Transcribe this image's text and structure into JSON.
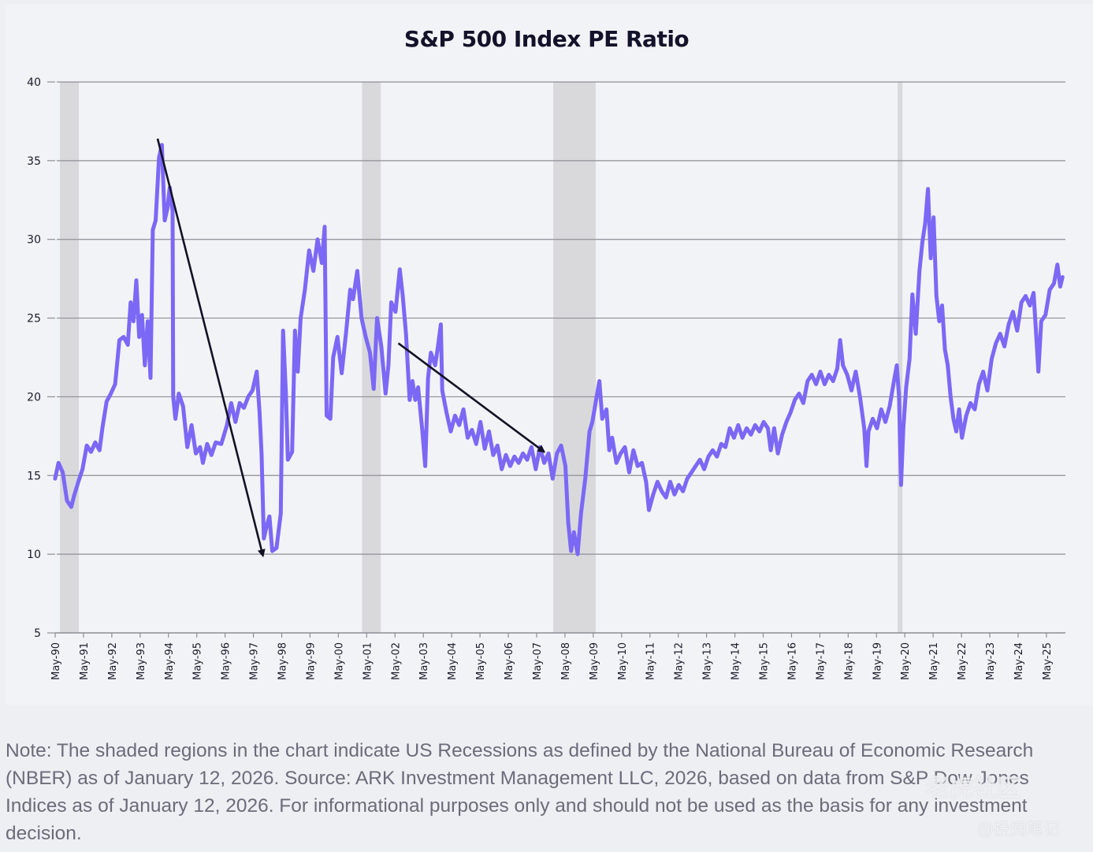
{
  "chart_data": {
    "type": "line",
    "title": "S&P 500 Index PE Ratio",
    "xlabel": "",
    "ylabel": "",
    "ylim": [
      5,
      40
    ],
    "yticks": [
      5,
      10,
      15,
      20,
      25,
      30,
      35,
      40
    ],
    "grid": "horizontal",
    "x_start": "May-90",
    "x_end": "Dec-25",
    "xtick_labels": [
      "May-90",
      "May-91",
      "May-92",
      "May-93",
      "May-94",
      "May-95",
      "May-96",
      "May-97",
      "May-98",
      "May-99",
      "May-00",
      "May-01",
      "May-02",
      "May-03",
      "May-04",
      "May-05",
      "May-06",
      "May-07",
      "May-08",
      "May-09",
      "May-10",
      "May-11",
      "May-12",
      "May-13",
      "May-14",
      "May-15",
      "May-16",
      "May-17",
      "May-18",
      "May-19",
      "May-20",
      "May-21",
      "May-22",
      "May-23",
      "May-24",
      "May-25"
    ],
    "series_color": "#7b68f5",
    "recession_color": "#d9d9dc",
    "recessions": [
      {
        "start": 1990.5,
        "end": 1991.17
      },
      {
        "start": 2001.17,
        "end": 2001.83
      },
      {
        "start": 2007.92,
        "end": 2009.42
      },
      {
        "start": 2020.08,
        "end": 2020.25
      }
    ],
    "series": [
      {
        "name": "S&P 500 PE Ratio",
        "points": [
          [
            1990.33,
            14.8
          ],
          [
            1990.45,
            15.8
          ],
          [
            1990.6,
            15.2
          ],
          [
            1990.75,
            13.4
          ],
          [
            1990.9,
            13.0
          ],
          [
            1991.0,
            13.7
          ],
          [
            1991.15,
            14.6
          ],
          [
            1991.3,
            15.4
          ],
          [
            1991.45,
            16.9
          ],
          [
            1991.6,
            16.5
          ],
          [
            1991.75,
            17.1
          ],
          [
            1991.9,
            16.6
          ],
          [
            1992.0,
            18.0
          ],
          [
            1992.15,
            19.7
          ],
          [
            1992.3,
            20.2
          ],
          [
            1992.45,
            20.8
          ],
          [
            1992.6,
            23.6
          ],
          [
            1992.75,
            23.8
          ],
          [
            1992.9,
            23.3
          ],
          [
            1993.0,
            26.0
          ],
          [
            1993.1,
            24.8
          ],
          [
            1993.2,
            27.4
          ],
          [
            1993.3,
            23.8
          ],
          [
            1993.4,
            25.2
          ],
          [
            1993.5,
            22.0
          ],
          [
            1993.6,
            24.8
          ],
          [
            1993.7,
            21.2
          ],
          [
            1993.78,
            30.6
          ],
          [
            1993.88,
            31.2
          ],
          [
            1994.0,
            35.2
          ],
          [
            1994.1,
            36.0
          ],
          [
            1994.2,
            31.2
          ],
          [
            1994.3,
            32.0
          ],
          [
            1994.38,
            33.3
          ],
          [
            1994.48,
            31.8
          ],
          [
            1994.5,
            20.0
          ],
          [
            1994.58,
            18.6
          ],
          [
            1994.7,
            20.2
          ],
          [
            1994.85,
            19.4
          ],
          [
            1995.0,
            16.8
          ],
          [
            1995.15,
            18.2
          ],
          [
            1995.3,
            16.4
          ],
          [
            1995.45,
            16.8
          ],
          [
            1995.55,
            15.8
          ],
          [
            1995.7,
            17.0
          ],
          [
            1995.85,
            16.3
          ],
          [
            1996.0,
            17.1
          ],
          [
            1996.2,
            17.0
          ],
          [
            1996.4,
            18.2
          ],
          [
            1996.55,
            19.6
          ],
          [
            1996.7,
            18.4
          ],
          [
            1996.85,
            19.6
          ],
          [
            1997.0,
            19.3
          ],
          [
            1997.15,
            20.0
          ],
          [
            1997.3,
            20.4
          ],
          [
            1997.45,
            21.6
          ],
          [
            1997.55,
            19.0
          ],
          [
            1997.62,
            16.4
          ],
          [
            1997.7,
            11.0
          ],
          [
            1997.8,
            11.8
          ],
          [
            1997.9,
            12.4
          ],
          [
            1998.0,
            10.2
          ],
          [
            1998.15,
            10.4
          ],
          [
            1998.3,
            12.6
          ],
          [
            1998.38,
            24.2
          ],
          [
            1998.48,
            20.2
          ],
          [
            1998.55,
            16.0
          ],
          [
            1998.7,
            16.5
          ],
          [
            1998.8,
            24.2
          ],
          [
            1998.9,
            21.6
          ],
          [
            1999.0,
            25.0
          ],
          [
            1999.15,
            26.8
          ],
          [
            1999.3,
            29.3
          ],
          [
            1999.45,
            28.0
          ],
          [
            1999.6,
            30.0
          ],
          [
            1999.75,
            28.5
          ],
          [
            1999.85,
            30.8
          ],
          [
            1999.92,
            18.8
          ],
          [
            2000.05,
            18.6
          ],
          [
            2000.15,
            22.5
          ],
          [
            2000.3,
            23.8
          ],
          [
            2000.45,
            21.5
          ],
          [
            2000.6,
            24.0
          ],
          [
            2000.75,
            26.8
          ],
          [
            2000.85,
            26.2
          ],
          [
            2001.0,
            28.0
          ],
          [
            2001.15,
            25.0
          ],
          [
            2001.3,
            23.8
          ],
          [
            2001.45,
            22.8
          ],
          [
            2001.58,
            20.5
          ],
          [
            2001.7,
            25.0
          ],
          [
            2001.85,
            23.2
          ],
          [
            2002.0,
            20.2
          ],
          [
            2002.1,
            22.0
          ],
          [
            2002.2,
            26.0
          ],
          [
            2002.35,
            25.4
          ],
          [
            2002.5,
            28.1
          ],
          [
            2002.6,
            26.5
          ],
          [
            2002.72,
            24.0
          ],
          [
            2002.85,
            19.8
          ],
          [
            2002.95,
            21.0
          ],
          [
            2003.05,
            19.8
          ],
          [
            2003.15,
            20.6
          ],
          [
            2003.3,
            17.8
          ],
          [
            2003.4,
            15.6
          ],
          [
            2003.5,
            21.2
          ],
          [
            2003.6,
            22.8
          ],
          [
            2003.75,
            22.0
          ],
          [
            2003.85,
            23.2
          ],
          [
            2003.95,
            24.6
          ],
          [
            2004.0,
            20.4
          ],
          [
            2004.15,
            19.0
          ],
          [
            2004.3,
            17.8
          ],
          [
            2004.45,
            18.8
          ],
          [
            2004.6,
            18.2
          ],
          [
            2004.75,
            19.2
          ],
          [
            2004.9,
            17.4
          ],
          [
            2005.05,
            17.9
          ],
          [
            2005.2,
            17.0
          ],
          [
            2005.35,
            18.4
          ],
          [
            2005.5,
            16.7
          ],
          [
            2005.65,
            17.8
          ],
          [
            2005.8,
            16.3
          ],
          [
            2005.95,
            16.9
          ],
          [
            2006.1,
            15.4
          ],
          [
            2006.25,
            16.3
          ],
          [
            2006.4,
            15.6
          ],
          [
            2006.55,
            16.2
          ],
          [
            2006.7,
            15.8
          ],
          [
            2006.85,
            16.4
          ],
          [
            2007.0,
            16.0
          ],
          [
            2007.15,
            16.8
          ],
          [
            2007.3,
            15.4
          ],
          [
            2007.45,
            16.8
          ],
          [
            2007.6,
            15.8
          ],
          [
            2007.75,
            16.4
          ],
          [
            2007.9,
            14.8
          ],
          [
            2008.05,
            16.4
          ],
          [
            2008.2,
            16.9
          ],
          [
            2008.35,
            15.6
          ],
          [
            2008.45,
            12.0
          ],
          [
            2008.55,
            10.2
          ],
          [
            2008.65,
            11.4
          ],
          [
            2008.78,
            10.0
          ],
          [
            2008.9,
            12.6
          ],
          [
            2009.05,
            14.8
          ],
          [
            2009.2,
            17.8
          ],
          [
            2009.3,
            18.4
          ],
          [
            2009.45,
            20.0
          ],
          [
            2009.55,
            21.0
          ],
          [
            2009.65,
            18.6
          ],
          [
            2009.8,
            19.2
          ],
          [
            2009.9,
            16.6
          ],
          [
            2010.0,
            17.4
          ],
          [
            2010.15,
            15.8
          ],
          [
            2010.3,
            16.4
          ],
          [
            2010.45,
            16.8
          ],
          [
            2010.6,
            15.2
          ],
          [
            2010.75,
            16.6
          ],
          [
            2010.9,
            15.6
          ],
          [
            2011.05,
            15.8
          ],
          [
            2011.2,
            14.6
          ],
          [
            2011.3,
            12.8
          ],
          [
            2011.45,
            13.8
          ],
          [
            2011.6,
            14.6
          ],
          [
            2011.75,
            14.0
          ],
          [
            2011.9,
            13.6
          ],
          [
            2012.05,
            14.6
          ],
          [
            2012.2,
            13.8
          ],
          [
            2012.35,
            14.4
          ],
          [
            2012.5,
            14.0
          ],
          [
            2012.65,
            14.8
          ],
          [
            2012.8,
            15.2
          ],
          [
            2012.95,
            15.6
          ],
          [
            2013.1,
            16.0
          ],
          [
            2013.25,
            15.4
          ],
          [
            2013.4,
            16.2
          ],
          [
            2013.55,
            16.6
          ],
          [
            2013.7,
            16.2
          ],
          [
            2013.85,
            17.0
          ],
          [
            2014.0,
            16.8
          ],
          [
            2014.15,
            18.0
          ],
          [
            2014.3,
            17.4
          ],
          [
            2014.45,
            18.2
          ],
          [
            2014.6,
            17.4
          ],
          [
            2014.75,
            18.0
          ],
          [
            2014.9,
            17.6
          ],
          [
            2015.05,
            18.2
          ],
          [
            2015.2,
            17.8
          ],
          [
            2015.35,
            18.4
          ],
          [
            2015.5,
            18.0
          ],
          [
            2015.6,
            16.6
          ],
          [
            2015.72,
            18.0
          ],
          [
            2015.85,
            16.4
          ],
          [
            2016.0,
            17.6
          ],
          [
            2016.15,
            18.4
          ],
          [
            2016.3,
            19.0
          ],
          [
            2016.45,
            19.8
          ],
          [
            2016.6,
            20.2
          ],
          [
            2016.75,
            19.6
          ],
          [
            2016.9,
            21.0
          ],
          [
            2017.05,
            21.4
          ],
          [
            2017.2,
            20.8
          ],
          [
            2017.35,
            21.6
          ],
          [
            2017.5,
            20.8
          ],
          [
            2017.65,
            21.4
          ],
          [
            2017.8,
            21.0
          ],
          [
            2017.95,
            21.8
          ],
          [
            2018.05,
            23.6
          ],
          [
            2018.15,
            22.0
          ],
          [
            2018.3,
            21.4
          ],
          [
            2018.45,
            20.4
          ],
          [
            2018.6,
            21.6
          ],
          [
            2018.75,
            20.0
          ],
          [
            2018.9,
            18.0
          ],
          [
            2018.98,
            15.6
          ],
          [
            2019.05,
            17.8
          ],
          [
            2019.2,
            18.6
          ],
          [
            2019.35,
            18.0
          ],
          [
            2019.5,
            19.2
          ],
          [
            2019.65,
            18.4
          ],
          [
            2019.8,
            19.4
          ],
          [
            2019.95,
            21.0
          ],
          [
            2020.05,
            22.0
          ],
          [
            2020.13,
            20.0
          ],
          [
            2020.2,
            14.4
          ],
          [
            2020.28,
            18.0
          ],
          [
            2020.38,
            20.6
          ],
          [
            2020.5,
            22.4
          ],
          [
            2020.6,
            26.5
          ],
          [
            2020.72,
            24.0
          ],
          [
            2020.85,
            28.0
          ],
          [
            2020.95,
            29.8
          ],
          [
            2021.05,
            31.0
          ],
          [
            2021.15,
            33.2
          ],
          [
            2021.25,
            28.8
          ],
          [
            2021.35,
            31.4
          ],
          [
            2021.45,
            26.4
          ],
          [
            2021.55,
            24.8
          ],
          [
            2021.65,
            25.8
          ],
          [
            2021.75,
            23.0
          ],
          [
            2021.85,
            22.0
          ],
          [
            2021.95,
            20.0
          ],
          [
            2022.05,
            18.6
          ],
          [
            2022.15,
            17.8
          ],
          [
            2022.25,
            19.2
          ],
          [
            2022.35,
            17.4
          ],
          [
            2022.5,
            18.8
          ],
          [
            2022.65,
            19.6
          ],
          [
            2022.8,
            19.2
          ],
          [
            2022.95,
            20.8
          ],
          [
            2023.1,
            21.6
          ],
          [
            2023.25,
            20.4
          ],
          [
            2023.4,
            22.4
          ],
          [
            2023.55,
            23.4
          ],
          [
            2023.7,
            24.0
          ],
          [
            2023.85,
            23.2
          ],
          [
            2024.0,
            24.6
          ],
          [
            2024.15,
            25.4
          ],
          [
            2024.3,
            24.2
          ],
          [
            2024.45,
            26.0
          ],
          [
            2024.6,
            26.4
          ],
          [
            2024.75,
            25.8
          ],
          [
            2024.88,
            26.6
          ],
          [
            2024.95,
            24.6
          ],
          [
            2025.05,
            21.6
          ],
          [
            2025.15,
            24.8
          ],
          [
            2025.3,
            25.2
          ],
          [
            2025.45,
            26.8
          ],
          [
            2025.6,
            27.2
          ],
          [
            2025.72,
            28.4
          ],
          [
            2025.82,
            27.0
          ],
          [
            2025.9,
            27.6
          ]
        ]
      }
    ],
    "annotations": [
      {
        "type": "arrow",
        "from": [
          1993.95,
          36.4
        ],
        "to": [
          1997.67,
          9.9
        ]
      },
      {
        "type": "arrow",
        "from": [
          2002.45,
          23.4
        ],
        "to": [
          2007.6,
          16.5
        ]
      }
    ]
  },
  "footnote": "Note: The shaded regions in the chart indicate US Recessions as defined by the National Bureau of Economic Research (NBER) as of January 12, 2026. Source: ARK Investment Management LLC, 2026, based on data from S&P Dow Jones Indices as of January 12, 2026. For informational purposes only and should not be used as the basis for any investment decision.",
  "watermark": {
    "primary": "老虎社区",
    "secondary": "@投阅笔记"
  }
}
